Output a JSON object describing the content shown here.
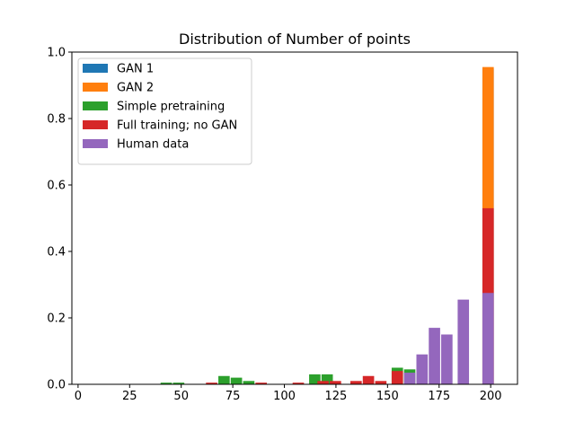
{
  "chart_data": {
    "type": "bar",
    "title": "Distribution of Number of points",
    "xlabel": "",
    "ylabel": "",
    "xlim": [
      -3,
      213
    ],
    "ylim": [
      0,
      1.0
    ],
    "bin_width": 5.5,
    "x_ticks": [
      0,
      25,
      50,
      75,
      100,
      125,
      150,
      175,
      200
    ],
    "y_ticks": [
      0.0,
      0.2,
      0.4,
      0.6,
      0.8,
      1.0
    ],
    "x_tick_labels": [
      "0",
      "25",
      "50",
      "75",
      "100",
      "125",
      "150",
      "175",
      "200"
    ],
    "y_tick_labels": [
      "0.0",
      "0.2",
      "0.4",
      "0.6",
      "0.8",
      "1.0"
    ],
    "legend_position": "top-left",
    "grid": false,
    "series": [
      {
        "name": "GAN 1",
        "color": "#1f77b4",
        "bins": [
          [
            196,
            0.95
          ]
        ]
      },
      {
        "name": "GAN 2",
        "color": "#ff7f0e",
        "bins": [
          [
            196,
            0.955
          ]
        ]
      },
      {
        "name": "Simple pretraining",
        "color": "#2ca02c",
        "bins": [
          [
            40,
            0.005
          ],
          [
            46,
            0.005
          ],
          [
            68,
            0.025
          ],
          [
            74,
            0.02
          ],
          [
            80,
            0.01
          ],
          [
            112,
            0.03
          ],
          [
            118,
            0.03
          ],
          [
            152,
            0.05
          ],
          [
            158,
            0.045
          ]
        ]
      },
      {
        "name": "Full training; no GAN",
        "color": "#d62728",
        "bins": [
          [
            62,
            0.005
          ],
          [
            86,
            0.005
          ],
          [
            104,
            0.005
          ],
          [
            116,
            0.01
          ],
          [
            122,
            0.01
          ],
          [
            132,
            0.01
          ],
          [
            138,
            0.025
          ],
          [
            144,
            0.01
          ],
          [
            152,
            0.04
          ],
          [
            196,
            0.53
          ]
        ]
      },
      {
        "name": "Human data",
        "color": "#9467bd",
        "bins": [
          [
            158,
            0.035
          ],
          [
            164,
            0.09
          ],
          [
            170,
            0.17
          ],
          [
            176,
            0.15
          ],
          [
            184,
            0.255
          ],
          [
            196,
            0.275
          ]
        ]
      }
    ]
  }
}
